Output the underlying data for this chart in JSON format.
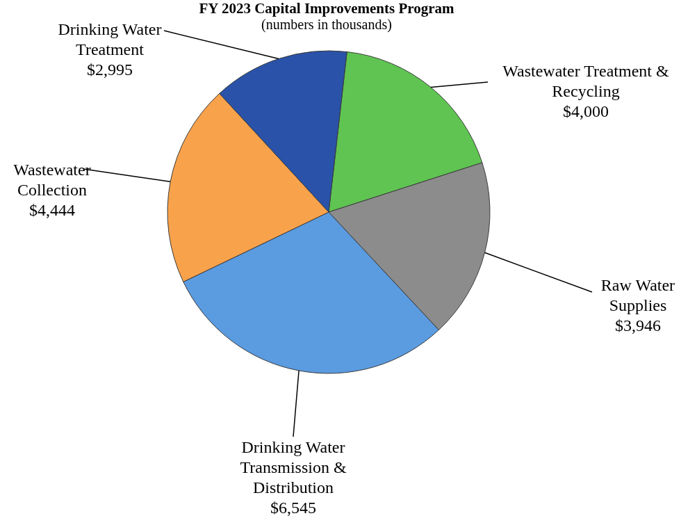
{
  "chart_data": {
    "type": "pie",
    "title": "FY 2023 Capital Improvements Program",
    "subtitle": "(numbers in thousands)",
    "categories": [
      "Wastewater Treatment & Recycling",
      "Raw Water Supplies",
      "Drinking Water Transmission & Distribution",
      "Wastewater Collection",
      "Drinking Water Treatment"
    ],
    "values": [
      4000,
      3946,
      6545,
      4444,
      2995
    ],
    "value_labels": [
      "$4,000",
      "$3,946",
      "$6,545",
      "$4,444",
      "$2,995"
    ],
    "colors": [
      "#5fc452",
      "#8c8c8c",
      "#5b9be0",
      "#f9a24c",
      "#2a52a8"
    ],
    "legend": false
  }
}
